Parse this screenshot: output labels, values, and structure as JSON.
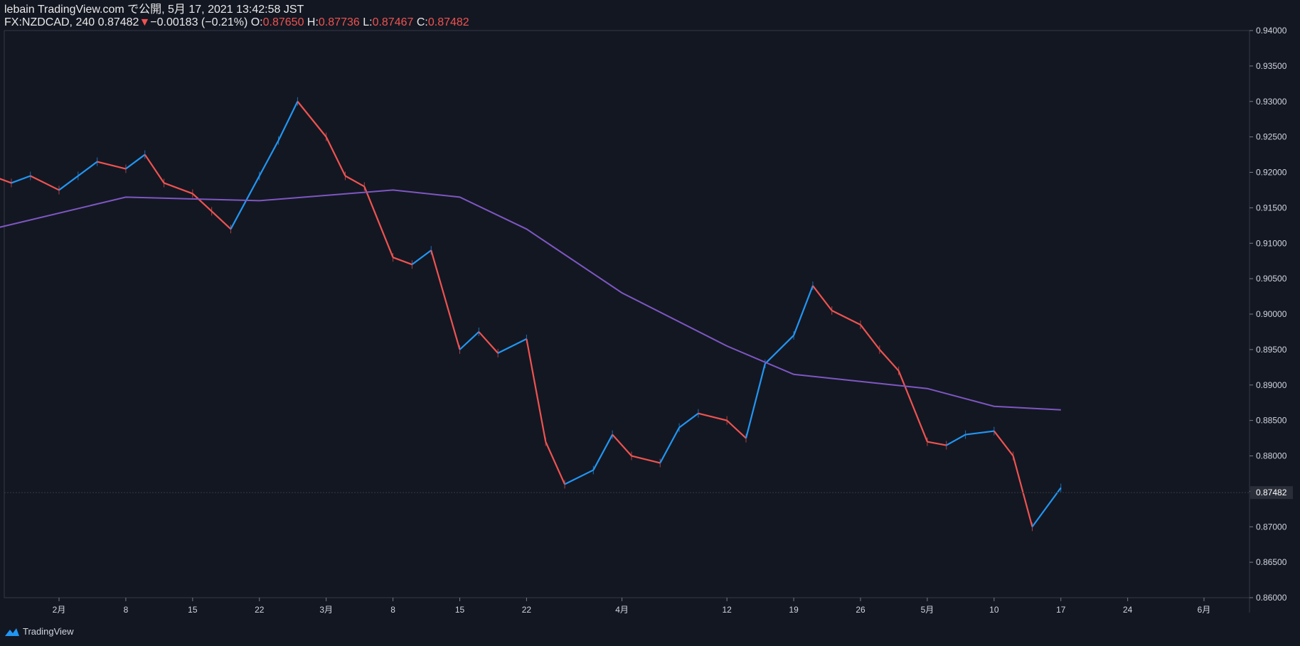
{
  "header": {
    "line1": "lebain TradingView.com で公開, 5月 17, 2021 13:42:58 JST",
    "symbol": "FX:NZDCAD, 240",
    "last": "0.87482",
    "change": "−0.00183 (−0.21%)",
    "o_label": "O:",
    "o": "0.87650",
    "h_label": "H:",
    "h": "0.87736",
    "l_label": "L:",
    "l": "0.87467",
    "c_label": "C:",
    "c": "0.87482"
  },
  "footer": {
    "brand": "TradingView"
  },
  "colors": {
    "background": "#131722",
    "up": "#2196f3",
    "down": "#ef5350",
    "ma": "#7e57c2",
    "axis_text": "#d1d4dc",
    "price_tag_bg": "#2a2e39"
  },
  "chart_data": {
    "type": "line",
    "instrument": "FX:NZDCAD",
    "interval": "240",
    "ylim": [
      0.86,
      0.94
    ],
    "y_ticks": [
      "0.86000",
      "0.86500",
      "0.87000",
      "0.87500",
      "0.88000",
      "0.88500",
      "0.89000",
      "0.89500",
      "0.90000",
      "0.90500",
      "0.91000",
      "0.91500",
      "0.92000",
      "0.92500",
      "0.93000",
      "0.93500",
      "0.94000"
    ],
    "x_ticks": [
      "2月",
      "8",
      "15",
      "22",
      "3月",
      "8",
      "15",
      "22",
      "4月",
      "12",
      "19",
      "26",
      "5月",
      "10",
      "17",
      "24",
      "6月"
    ],
    "x_tick_dates": [
      "2021-02-01",
      "2021-02-08",
      "2021-02-15",
      "2021-02-22",
      "2021-03-01",
      "2021-03-08",
      "2021-03-15",
      "2021-03-22",
      "2021-04-01",
      "2021-04-12",
      "2021-04-19",
      "2021-04-26",
      "2021-05-03",
      "2021-05-10",
      "2021-05-17",
      "2021-05-24",
      "2021-06-01"
    ],
    "last_price": "0.87482",
    "series": [
      {
        "x": [
          "2021-01-25",
          "2021-01-27",
          "2021-01-29",
          "2021-02-01",
          "2021-02-03",
          "2021-02-05",
          "2021-02-08",
          "2021-02-10",
          "2021-02-12",
          "2021-02-15",
          "2021-02-17",
          "2021-02-19",
          "2021-02-22",
          "2021-02-24",
          "2021-02-26",
          "2021-03-01",
          "2021-03-03",
          "2021-03-05",
          "2021-03-08",
          "2021-03-10",
          "2021-03-12",
          "2021-03-15",
          "2021-03-17",
          "2021-03-19",
          "2021-03-22",
          "2021-03-24",
          "2021-03-26",
          "2021-03-29",
          "2021-03-31",
          "2021-04-02",
          "2021-04-05",
          "2021-04-07",
          "2021-04-09",
          "2021-04-12",
          "2021-04-14",
          "2021-04-16",
          "2021-04-19",
          "2021-04-21",
          "2021-04-23",
          "2021-04-26",
          "2021-04-28",
          "2021-04-30",
          "2021-05-03",
          "2021-05-05",
          "2021-05-07",
          "2021-05-10",
          "2021-05-12",
          "2021-05-14",
          "2021-05-17"
        ],
        "values": [
          0.9195,
          0.9185,
          0.9195,
          0.9175,
          0.9195,
          0.9215,
          0.9205,
          0.9225,
          0.9185,
          0.917,
          0.9145,
          0.912,
          0.9195,
          0.9245,
          0.93,
          0.925,
          0.9195,
          0.918,
          0.908,
          0.907,
          0.909,
          0.895,
          0.8975,
          0.8945,
          0.8965,
          0.882,
          0.876,
          0.878,
          0.883,
          0.88,
          0.879,
          0.884,
          0.886,
          0.885,
          0.8825,
          0.893,
          0.897,
          0.904,
          0.9005,
          0.8985,
          0.895,
          0.892,
          0.882,
          0.8815,
          0.883,
          0.8835,
          0.88,
          0.87,
          0.8755
        ]
      },
      {
        "x": [
          "2021-01-25",
          "2021-02-08",
          "2021-02-22",
          "2021-03-08",
          "2021-03-15",
          "2021-03-22",
          "2021-04-01",
          "2021-04-12",
          "2021-04-19",
          "2021-04-26",
          "2021-05-03",
          "2021-05-10",
          "2021-05-17"
        ],
        "values": [
          0.912,
          0.9165,
          0.916,
          0.9175,
          0.9165,
          0.912,
          0.903,
          0.8955,
          0.8915,
          0.8905,
          0.8895,
          0.887,
          0.8865
        ]
      }
    ]
  }
}
